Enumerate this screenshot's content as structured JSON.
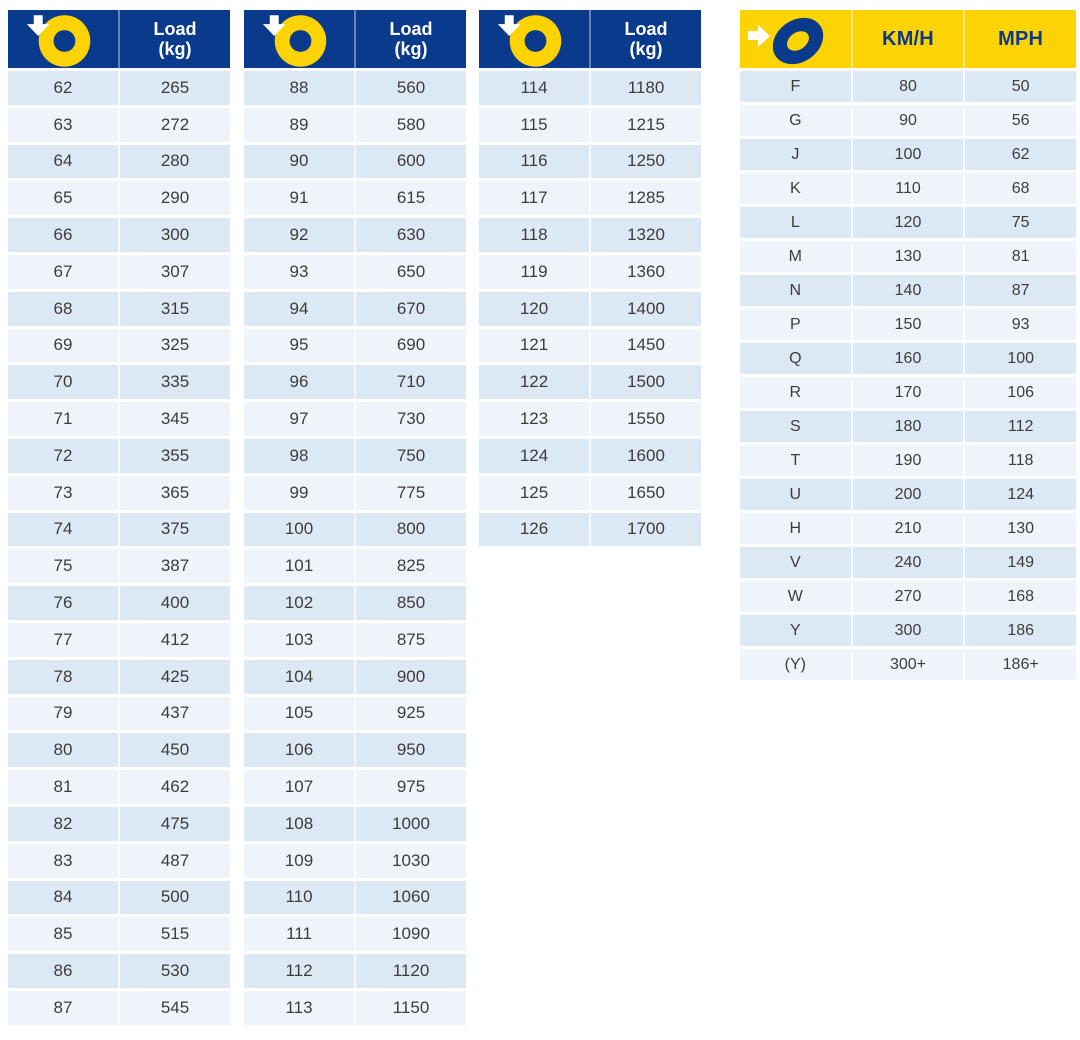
{
  "colors": {
    "header_navy": "#0a3a8c",
    "header_yellow": "#fdd303",
    "row_dark": "#dce8f3",
    "row_light": "#eef4fa",
    "row_text": "#3d3d3d",
    "header_text_on_navy": "#ffffff",
    "header_text_on_yellow": "#0a3a8c"
  },
  "icons": {
    "load_header_icon": "tire-load-index-icon (yellow ring with white down arrow)",
    "speed_header_icon": "tire-speed-rating-icon (blue tilted ring with white right arrow)"
  },
  "load_tables": [
    {
      "header_label": "Load (kg)",
      "rows": [
        [
          62,
          265
        ],
        [
          63,
          272
        ],
        [
          64,
          280
        ],
        [
          65,
          290
        ],
        [
          66,
          300
        ],
        [
          67,
          307
        ],
        [
          68,
          315
        ],
        [
          69,
          325
        ],
        [
          70,
          335
        ],
        [
          71,
          345
        ],
        [
          72,
          355
        ],
        [
          73,
          365
        ],
        [
          74,
          375
        ],
        [
          75,
          387
        ],
        [
          76,
          400
        ],
        [
          77,
          412
        ],
        [
          78,
          425
        ],
        [
          79,
          437
        ],
        [
          80,
          450
        ],
        [
          81,
          462
        ],
        [
          82,
          475
        ],
        [
          83,
          487
        ],
        [
          84,
          500
        ],
        [
          85,
          515
        ],
        [
          86,
          530
        ],
        [
          87,
          545
        ]
      ]
    },
    {
      "header_label": "Load (kg)",
      "rows": [
        [
          88,
          560
        ],
        [
          89,
          580
        ],
        [
          90,
          600
        ],
        [
          91,
          615
        ],
        [
          92,
          630
        ],
        [
          93,
          650
        ],
        [
          94,
          670
        ],
        [
          95,
          690
        ],
        [
          96,
          710
        ],
        [
          97,
          730
        ],
        [
          98,
          750
        ],
        [
          99,
          775
        ],
        [
          100,
          800
        ],
        [
          101,
          825
        ],
        [
          102,
          850
        ],
        [
          103,
          875
        ],
        [
          104,
          900
        ],
        [
          105,
          925
        ],
        [
          106,
          950
        ],
        [
          107,
          975
        ],
        [
          108,
          1000
        ],
        [
          109,
          1030
        ],
        [
          110,
          1060
        ],
        [
          111,
          1090
        ],
        [
          112,
          1120
        ],
        [
          113,
          1150
        ]
      ]
    },
    {
      "header_label": "Load (kg)",
      "rows": [
        [
          114,
          1180
        ],
        [
          115,
          1215
        ],
        [
          116,
          1250
        ],
        [
          117,
          1285
        ],
        [
          118,
          1320
        ],
        [
          119,
          1360
        ],
        [
          120,
          1400
        ],
        [
          121,
          1450
        ],
        [
          122,
          1500
        ],
        [
          123,
          1550
        ],
        [
          124,
          1600
        ],
        [
          125,
          1650
        ],
        [
          126,
          1700
        ]
      ]
    }
  ],
  "speed_table": {
    "col_headers": [
      "KM/H",
      "MPH"
    ],
    "rows": [
      [
        "F",
        "80",
        "50"
      ],
      [
        "G",
        "90",
        "56"
      ],
      [
        "J",
        "100",
        "62"
      ],
      [
        "K",
        "110",
        "68"
      ],
      [
        "L",
        "120",
        "75"
      ],
      [
        "M",
        "130",
        "81"
      ],
      [
        "N",
        "140",
        "87"
      ],
      [
        "P",
        "150",
        "93"
      ],
      [
        "Q",
        "160",
        "100"
      ],
      [
        "R",
        "170",
        "106"
      ],
      [
        "S",
        "180",
        "112"
      ],
      [
        "T",
        "190",
        "118"
      ],
      [
        "U",
        "200",
        "124"
      ],
      [
        "H",
        "210",
        "130"
      ],
      [
        "V",
        "240",
        "149"
      ],
      [
        "W",
        "270",
        "168"
      ],
      [
        "Y",
        "300",
        "186"
      ],
      [
        "(Y)",
        "300+",
        "186+"
      ]
    ]
  }
}
